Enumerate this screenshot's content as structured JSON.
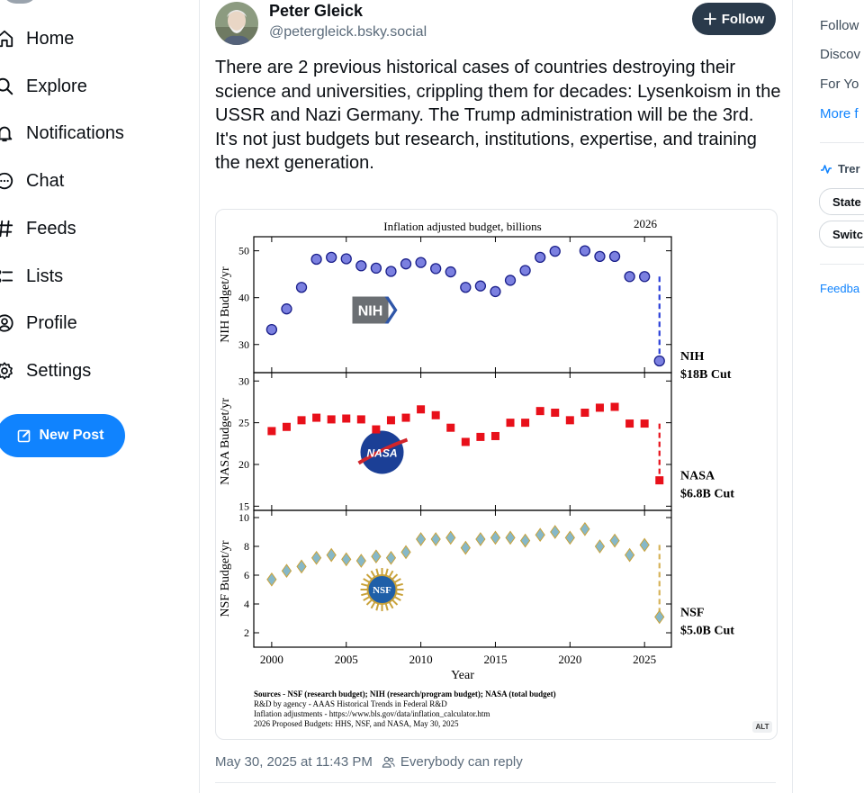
{
  "nav": {
    "items": [
      {
        "label": "Home",
        "icon": "home-icon"
      },
      {
        "label": "Explore",
        "icon": "search-icon"
      },
      {
        "label": "Notifications",
        "icon": "bell-icon"
      },
      {
        "label": "Chat",
        "icon": "chat-icon"
      },
      {
        "label": "Feeds",
        "icon": "hash-icon"
      },
      {
        "label": "Lists",
        "icon": "list-icon"
      },
      {
        "label": "Profile",
        "icon": "user-icon"
      },
      {
        "label": "Settings",
        "icon": "gear-icon"
      }
    ],
    "new_post_label": "New Post"
  },
  "post": {
    "display_name": "Peter Gleick",
    "handle": "@petergleick.bsky.social",
    "follow_label": "Follow",
    "text_paragraphs": [
      "There are 2 previous historical cases of countries destroying their science and universities, crippling them for decades: Lysenkoism in the USSR and Nazi Germany. The Trump administration will be the 3rd.",
      "It's not just budgets but research, institutions, expertise, and training the next generation."
    ],
    "alt_label": "ALT",
    "timestamp": "May 30, 2025 at 11:43 PM",
    "reply_setting": "Everybody can reply"
  },
  "right_sidebar": {
    "links": [
      "Follow",
      "Discov",
      "For Yo",
      "More f"
    ],
    "trending_label": "Trer",
    "chips": [
      "State",
      "Switc"
    ],
    "feedback_label": "Feedba"
  },
  "colors": {
    "accent": "#1083fe",
    "follow_bg": "#2a3a4b",
    "nih_marker": "#7b80e0",
    "nasa_marker": "#e8101a",
    "nsf_marker": "#86b8c8"
  },
  "chart_data": {
    "type": "scatter",
    "title": "Inflation adjusted budget, billions",
    "year_marker": "2026",
    "xlabel": "Year",
    "x_ticks": [
      2000,
      2005,
      2010,
      2015,
      2020,
      2025
    ],
    "xlim": [
      1998.8,
      2026.8
    ],
    "panels": [
      {
        "name": "NIH",
        "ylabel": "NIH Budget/yr",
        "ylim": [
          24,
          53
        ],
        "y_ticks": [
          30,
          40,
          50
        ],
        "logo_text": "NIH",
        "cut_line1": "NIH",
        "cut_line2": "$18B Cut",
        "points": [
          [
            2000,
            33.2
          ],
          [
            2001,
            37.6
          ],
          [
            2002,
            42.2
          ],
          [
            2003,
            48.2
          ],
          [
            2004,
            48.6
          ],
          [
            2005,
            48.3
          ],
          [
            2006,
            46.8
          ],
          [
            2007,
            46.3
          ],
          [
            2008,
            45.6
          ],
          [
            2009,
            47.2
          ],
          [
            2010,
            47.5
          ],
          [
            2011,
            46.2
          ],
          [
            2012,
            45.5
          ],
          [
            2013,
            42.2
          ],
          [
            2014,
            42.5
          ],
          [
            2015,
            41.3
          ],
          [
            2016,
            43.7
          ],
          [
            2017,
            45.8
          ],
          [
            2018,
            48.6
          ],
          [
            2019,
            49.9
          ],
          [
            2020,
            null
          ],
          [
            2021,
            50.0
          ],
          [
            2022,
            48.8
          ],
          [
            2023,
            48.8
          ],
          [
            2024,
            44.5
          ],
          [
            2025,
            44.5
          ],
          [
            2026,
            26.5
          ]
        ]
      },
      {
        "name": "NASA",
        "ylabel": "NASA Budget/yr",
        "ylim": [
          14.5,
          31
        ],
        "y_ticks": [
          15,
          20,
          25,
          30
        ],
        "logo_text": "NASA",
        "cut_line1": "NASA",
        "cut_line2": "$6.8B Cut",
        "points": [
          [
            2000,
            24.0
          ],
          [
            2001,
            24.5
          ],
          [
            2002,
            25.3
          ],
          [
            2003,
            25.6
          ],
          [
            2004,
            25.4
          ],
          [
            2005,
            25.5
          ],
          [
            2006,
            25.4
          ],
          [
            2007,
            24.2
          ],
          [
            2008,
            25.3
          ],
          [
            2009,
            25.6
          ],
          [
            2010,
            26.6
          ],
          [
            2011,
            25.9
          ],
          [
            2012,
            24.4
          ],
          [
            2013,
            22.7
          ],
          [
            2014,
            23.3
          ],
          [
            2015,
            23.4
          ],
          [
            2016,
            25.0
          ],
          [
            2017,
            25.0
          ],
          [
            2018,
            26.4
          ],
          [
            2019,
            26.2
          ],
          [
            2020,
            25.3
          ],
          [
            2021,
            26.2
          ],
          [
            2022,
            26.8
          ],
          [
            2023,
            26.9
          ],
          [
            2024,
            24.9
          ],
          [
            2025,
            24.9
          ],
          [
            2026,
            18.1
          ]
        ]
      },
      {
        "name": "NSF",
        "ylabel": "NSF Budget/yr",
        "ylim": [
          1,
          10.5
        ],
        "y_ticks": [
          2,
          4,
          6,
          8,
          10
        ],
        "logo_text": "NSF",
        "cut_line1": "NSF",
        "cut_line2": "$5.0B Cut",
        "points": [
          [
            2000,
            5.7
          ],
          [
            2001,
            6.3
          ],
          [
            2002,
            6.6
          ],
          [
            2003,
            7.2
          ],
          [
            2004,
            7.4
          ],
          [
            2005,
            7.1
          ],
          [
            2006,
            7.0
          ],
          [
            2007,
            7.3
          ],
          [
            2008,
            7.2
          ],
          [
            2009,
            7.6
          ],
          [
            2010,
            8.5
          ],
          [
            2011,
            8.5
          ],
          [
            2012,
            8.6
          ],
          [
            2013,
            7.9
          ],
          [
            2014,
            8.5
          ],
          [
            2015,
            8.6
          ],
          [
            2016,
            8.6
          ],
          [
            2017,
            8.4
          ],
          [
            2018,
            8.8
          ],
          [
            2019,
            9.0
          ],
          [
            2020,
            8.6
          ],
          [
            2021,
            9.2
          ],
          [
            2022,
            8.0
          ],
          [
            2023,
            8.4
          ],
          [
            2024,
            7.4
          ],
          [
            2025,
            8.1
          ],
          [
            2026,
            3.1
          ]
        ]
      }
    ],
    "sources": [
      "Sources - NSF (research budget); NIH (research/program budget); NASA (total budget)",
      "R&D by agency - AAAS Historical Trends in Federal R&D",
      "Inflation adjustments - https://www.bls.gov/data/inflation_calculator.htm",
      "2026 Proposed Budgets: HHS, NSF, and NASA, May 30, 2025"
    ]
  }
}
